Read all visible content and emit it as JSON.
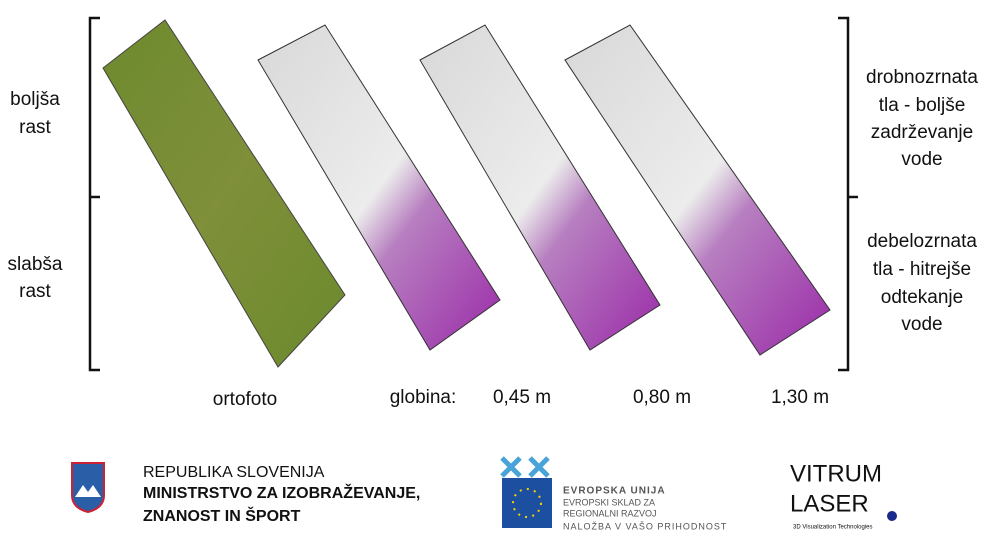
{
  "left_labels": {
    "top": [
      "boljša",
      "rast"
    ],
    "bottom": [
      "slabša",
      "rast"
    ]
  },
  "right_labels": {
    "top": [
      "drobnozrnata",
      "tla - boljše",
      "zadrževanje",
      "vode"
    ],
    "bottom": [
      "debelozrnata",
      "tla - hitrejše",
      "odtekanje",
      "vode"
    ]
  },
  "captions": {
    "orthophoto": "ortofoto",
    "depth": "globina:",
    "depths": [
      "0,45 m",
      "0,80 m",
      "1,30 m"
    ]
  },
  "logos": {
    "ministry": [
      "REPUBLIKA SLOVENIJA",
      "MINISTRSTVO ZA IZOBRAŽEVANJE,",
      "ZNANOST IN ŠPORT"
    ],
    "eu": [
      "EVROPSKA UNIJA",
      "EVROPSKI SKLAD ZA",
      "REGIONALNI RAZVOJ",
      "NALOŽBA V VAŠO PRIHODNOST"
    ],
    "vitrum": [
      "VITRUM",
      "LASER",
      "3D Visualization Technologies"
    ]
  }
}
